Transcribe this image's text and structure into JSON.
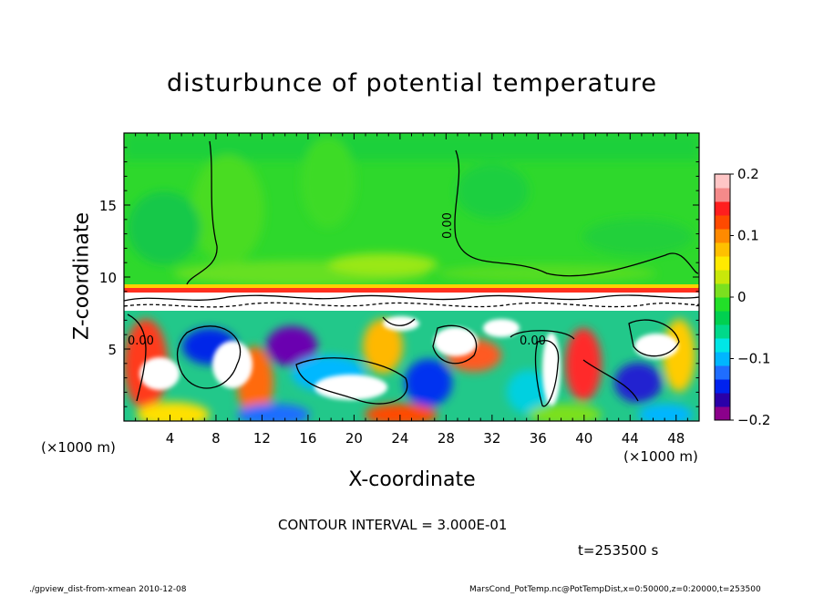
{
  "chart_data": {
    "type": "heatmap",
    "title": "disturbunce of potential temperature",
    "xlabel": "X-coordinate",
    "ylabel": "Z-coordinate",
    "x_unit_left": "(×1000 m)",
    "x_unit_right": "(×1000 m)",
    "x_ticks": [
      "4",
      "8",
      "12",
      "16",
      "20",
      "24",
      "28",
      "32",
      "36",
      "40",
      "44",
      "48"
    ],
    "y_ticks": [
      "5",
      "10",
      "15"
    ],
    "xlim": [
      0,
      50
    ],
    "ylim": [
      0,
      20
    ],
    "colorbar": {
      "ticks": [
        "0.2",
        "0.1",
        "0",
        "−0.1",
        "−0.2"
      ],
      "range": [
        -0.2,
        0.2
      ],
      "colors": [
        "#8b008b",
        "#2a00a8",
        "#0022ee",
        "#1f6dff",
        "#00b6ff",
        "#00e6e6",
        "#00d98a",
        "#00d050",
        "#22e028",
        "#7be01f",
        "#c8e80a",
        "#ffea00",
        "#ffc000",
        "#ff8a00",
        "#ff4a00",
        "#ff1e1e",
        "#f48a8a",
        "#ffc6c6"
      ]
    },
    "contour_interval": "CONTOUR INTERVAL = 3.000E-01",
    "contour_labels": [
      "0.00",
      "0.00",
      "0.00"
    ],
    "time_label": "t=253500 s",
    "footer_left": "./gpview_dist-from-xmean   2010-12-08",
    "footer_right": "MarsCond_PotTemp.nc@PotTempDist,x=0:50000,z=0:20000,t=253500"
  }
}
